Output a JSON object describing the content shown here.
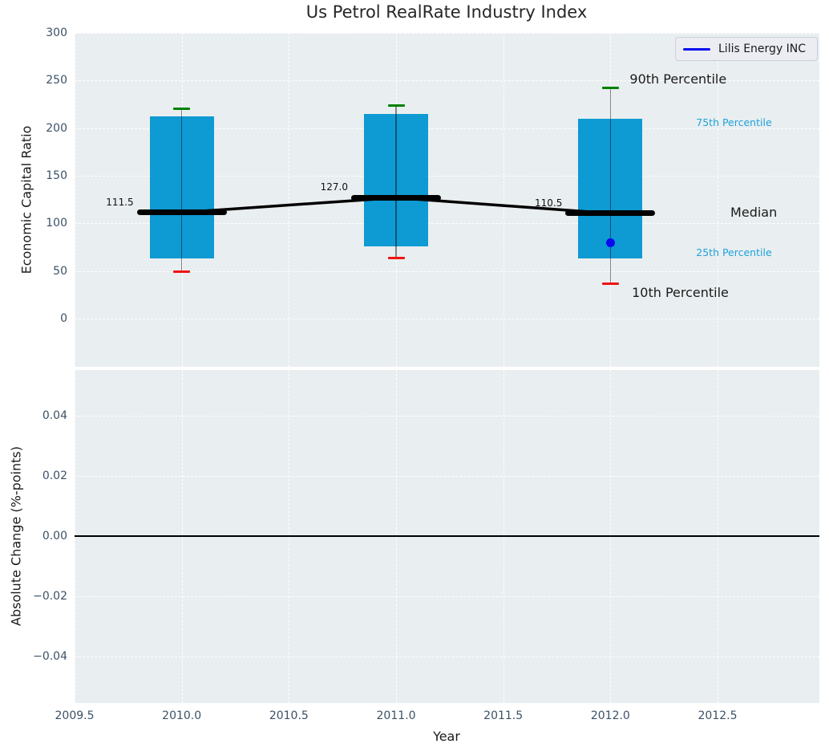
{
  "title": "Us Petrol RealRate Industry Index",
  "legend": {
    "label": "Lilis Energy INC"
  },
  "colors": {
    "bar": "#0e9ad3",
    "p90_cap": "#008000",
    "p10_cap": "#f01414",
    "median": "#000000",
    "trend_line": "#000000",
    "whisker": "#000000",
    "company": "#0a0af0",
    "panel_bg": "#e9eef0",
    "grid": "#ffffff",
    "tick_text": "#3c5166",
    "cyan_text": "#1ea2da",
    "annotation_text": "#1a1a1a"
  },
  "xaxis": {
    "label": "Year",
    "xlim": [
      2009.5,
      2012.975
    ],
    "ticks": [
      {
        "v": 2009.5,
        "label": "2009.5"
      },
      {
        "v": 2010.0,
        "label": "2010.0"
      },
      {
        "v": 2010.5,
        "label": "2010.5"
      },
      {
        "v": 2011.0,
        "label": "2011.0"
      },
      {
        "v": 2011.5,
        "label": "2011.5"
      },
      {
        "v": 2012.0,
        "label": "2012.0"
      },
      {
        "v": 2012.5,
        "label": "2012.5"
      }
    ]
  },
  "chart_data": [
    {
      "type": "bar",
      "panel": "top",
      "title": "Us Petrol RealRate Industry Index",
      "ylabel": "Economic Capital Ratio",
      "ylim": [
        -50.5,
        300
      ],
      "yticks": [
        {
          "v": 0,
          "label": "0"
        },
        {
          "v": 50,
          "label": "50"
        },
        {
          "v": 100,
          "label": "100"
        },
        {
          "v": 150,
          "label": "150"
        },
        {
          "v": 200,
          "label": "200"
        },
        {
          "v": 250,
          "label": "250"
        },
        {
          "v": 300,
          "label": "300"
        }
      ],
      "grid": true,
      "categories": [
        2010,
        2011,
        2012
      ],
      "bar_width_years": 0.3,
      "series": [
        {
          "name": "10th Percentile",
          "values": [
            49,
            64,
            37
          ]
        },
        {
          "name": "25th Percentile",
          "values": [
            63,
            76,
            63
          ]
        },
        {
          "name": "Median",
          "values": [
            111.5,
            127.0,
            110.5
          ]
        },
        {
          "name": "75th Percentile",
          "values": [
            212,
            215,
            210
          ]
        },
        {
          "name": "90th Percentile",
          "values": [
            220,
            224,
            242
          ]
        }
      ],
      "median_labels": [
        "111.5",
        "127.0",
        "110.5"
      ],
      "company_point": {
        "name": "Lilis Energy INC",
        "x": 2012,
        "y": 80
      },
      "annotations": [
        {
          "text": "90th Percentile",
          "x": 2012.09,
          "y": 251,
          "style": "large"
        },
        {
          "text": "75th Percentile",
          "x": 2012.4,
          "y": 206,
          "style": "small-cyan"
        },
        {
          "text": "Median",
          "x": 2012.56,
          "y": 111,
          "style": "large"
        },
        {
          "text": "25th Percentile",
          "x": 2012.4,
          "y": 69,
          "style": "small-cyan"
        },
        {
          "text": "10th Percentile",
          "x": 2012.1,
          "y": 27,
          "style": "large"
        }
      ]
    },
    {
      "type": "line",
      "panel": "bottom",
      "ylabel": "Absolute Change (%-points)",
      "ylim": [
        -0.0555,
        0.0553
      ],
      "yticks": [
        {
          "v": 0.04,
          "label": "0.04"
        },
        {
          "v": 0.02,
          "label": "0.02"
        },
        {
          "v": 0.0,
          "label": "0.00"
        },
        {
          "v": -0.02,
          "label": "−0.02"
        },
        {
          "v": -0.04,
          "label": "−0.04"
        }
      ],
      "grid": true,
      "zero_line": true,
      "series": []
    }
  ]
}
